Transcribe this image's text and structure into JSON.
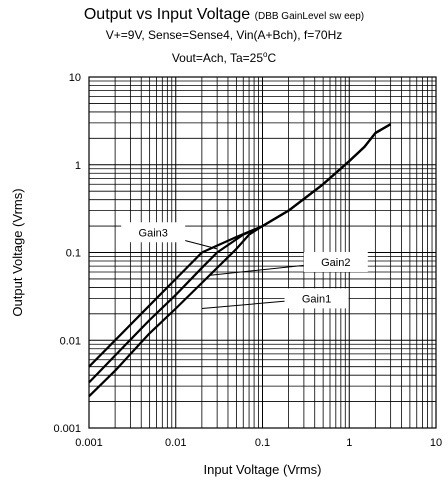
{
  "title_main": "Output vs Input Voltage",
  "title_suffix": "(DBB GainLevel sw eep)",
  "subtitle_line1": "V+=9V, Sense=Sense4, Vin(A+Bch), f=70Hz",
  "subtitle_line2_pre": "Vout=Ach, Ta=25",
  "subtitle_line2_deg": "o",
  "subtitle_line2_post": "C",
  "chart_data": {
    "type": "line",
    "xscale": "log",
    "yscale": "log",
    "xlim": [
      0.001,
      10
    ],
    "ylim": [
      0.001,
      10
    ],
    "xlabel": "Input Voltage (Vrms)",
    "ylabel": "Output Voltage (Vrms)",
    "xticks": [
      0.001,
      0.01,
      0.1,
      1,
      10
    ],
    "xtick_labels": [
      "0.001",
      "0.01",
      "0.1",
      "1",
      "10"
    ],
    "yticks": [
      0.001,
      0.01,
      0.1,
      1,
      10
    ],
    "ytick_labels": [
      "0.001",
      "0.01",
      "0.1",
      "1",
      "10"
    ],
    "grid": true,
    "series": [
      {
        "name": "Gain3",
        "x": [
          0.001,
          0.002,
          0.005,
          0.01,
          0.02,
          0.03,
          0.05,
          0.1,
          0.2,
          0.5,
          1,
          1.5,
          2,
          3
        ],
        "y": [
          0.005,
          0.01,
          0.025,
          0.05,
          0.1,
          0.12,
          0.15,
          0.2,
          0.3,
          0.6,
          1.1,
          1.6,
          2.3,
          2.9
        ]
      },
      {
        "name": "Gain2",
        "x": [
          0.001,
          0.002,
          0.005,
          0.01,
          0.02,
          0.03,
          0.06,
          0.1,
          0.2,
          0.5,
          1,
          1.5,
          2,
          3
        ],
        "y": [
          0.0033,
          0.0067,
          0.017,
          0.033,
          0.067,
          0.1,
          0.16,
          0.2,
          0.3,
          0.6,
          1.1,
          1.6,
          2.3,
          2.9
        ]
      },
      {
        "name": "Gain1",
        "x": [
          0.001,
          0.002,
          0.005,
          0.01,
          0.02,
          0.05,
          0.07,
          0.1,
          0.2,
          0.5,
          1,
          1.5,
          2,
          3
        ],
        "y": [
          0.0023,
          0.0045,
          0.012,
          0.023,
          0.045,
          0.11,
          0.16,
          0.2,
          0.3,
          0.6,
          1.1,
          1.6,
          2.3,
          2.9
        ]
      }
    ],
    "annotations": [
      {
        "label": "Gain3",
        "x": 0.0055,
        "y": 0.17,
        "x_target": 0.03,
        "y_target": 0.11
      },
      {
        "label": "Gain2",
        "x": 0.7,
        "y": 0.078,
        "x_target": 0.025,
        "y_target": 0.055
      },
      {
        "label": "Gain1",
        "x": 0.42,
        "y": 0.03,
        "x_target": 0.02,
        "y_target": 0.023
      }
    ]
  }
}
